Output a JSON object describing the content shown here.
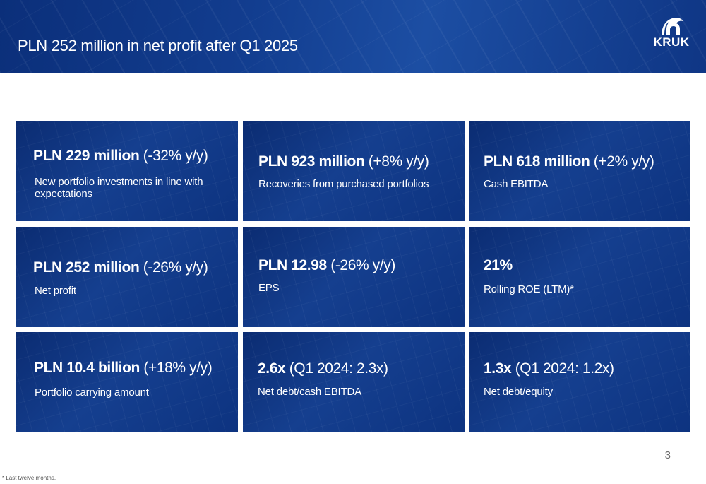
{
  "header": {
    "title": "PLN 252 million in net profit after Q1 2025",
    "logo_text": "KRUK"
  },
  "cards": [
    {
      "value": "PLN 229 million",
      "change": " (-32% y/y)",
      "label": "New portfolio investments in line with expectations"
    },
    {
      "value": "PLN 923 million",
      "change": " (+8% y/y)",
      "label": "Recoveries from purchased portfolios"
    },
    {
      "value": "PLN 618 million",
      "change": " (+2% y/y)",
      "label": "Cash EBITDA"
    },
    {
      "value": "PLN 252 million",
      "change": " (-26% y/y)",
      "label": "Net profit"
    },
    {
      "value": "PLN 12.98",
      "change": " (-26% y/y)",
      "label": "EPS"
    },
    {
      "value": "21%",
      "change": "",
      "label": "Rolling ROE (LTM)*"
    },
    {
      "value": "PLN 10.4 billion",
      "change": " (+18% y/y)",
      "label": "Portfolio carrying amount"
    },
    {
      "value": "2.6x",
      "change": " (Q1 2024: 2.3x)",
      "label": "Net debt/cash EBITDA"
    },
    {
      "value": "1.3x",
      "change": " (Q1 2024: 1.2x)",
      "label": "Net debt/equity"
    }
  ],
  "page_number": "3",
  "footnote": "* Last twelve months."
}
